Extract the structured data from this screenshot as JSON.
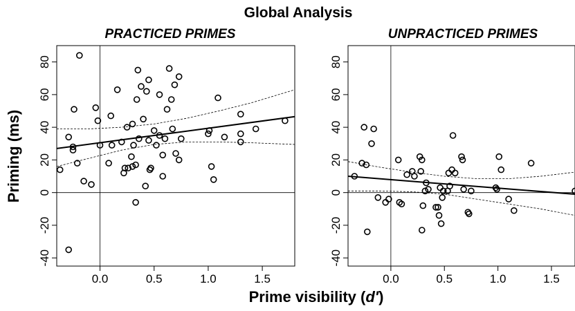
{
  "title": "Global Analysis",
  "xlabel_prefix": "Prime visibility (",
  "xlabel_var": "d′",
  "xlabel_suffix": ")",
  "ylabel": "Priming (ms)",
  "chart_data": [
    {
      "type": "scatter",
      "title": "PRACTICED PRIMES",
      "xlim": [
        -0.4,
        1.8
      ],
      "ylim": [
        -45,
        90
      ],
      "x_ticks": [
        0.0,
        0.5,
        1.0,
        1.5
      ],
      "x_tick_labels": [
        "0.0",
        "0.5",
        "1.0",
        "1.5"
      ],
      "y_ticks": [
        -40,
        -20,
        0,
        20,
        40,
        60,
        80
      ],
      "y_tick_labels": [
        "-40",
        "-20",
        "0",
        "20",
        "40",
        "60",
        "80"
      ],
      "reference_lines": {
        "x": 0,
        "y": 0
      },
      "regression": {
        "x": [
          -0.4,
          1.8
        ],
        "y": [
          27,
          46.5
        ]
      },
      "confidence_band": {
        "upper": {
          "x": [
            -0.4,
            -0.1,
            0.2,
            0.5,
            0.8,
            1.1,
            1.4,
            1.8
          ],
          "y": [
            39,
            39,
            40,
            42,
            45.5,
            50,
            55,
            63
          ]
        },
        "lower": {
          "x": [
            -0.4,
            -0.1,
            0.2,
            0.5,
            0.8,
            1.1,
            1.4,
            1.8
          ],
          "y": [
            16,
            21,
            26,
            29.5,
            31,
            31,
            30.5,
            29.5
          ]
        }
      },
      "points": [
        {
          "x": -0.37,
          "y": 14
        },
        {
          "x": -0.29,
          "y": 34
        },
        {
          "x": -0.29,
          "y": -35
        },
        {
          "x": -0.25,
          "y": 28
        },
        {
          "x": -0.25,
          "y": 26
        },
        {
          "x": -0.24,
          "y": 51
        },
        {
          "x": -0.21,
          "y": 18
        },
        {
          "x": -0.19,
          "y": 84
        },
        {
          "x": -0.15,
          "y": 7
        },
        {
          "x": -0.08,
          "y": 5
        },
        {
          "x": -0.04,
          "y": 52
        },
        {
          "x": -0.02,
          "y": 44
        },
        {
          "x": 0.0,
          "y": 29
        },
        {
          "x": 0.08,
          "y": 18
        },
        {
          "x": 0.1,
          "y": 47
        },
        {
          "x": 0.11,
          "y": 29
        },
        {
          "x": 0.16,
          "y": 63
        },
        {
          "x": 0.2,
          "y": 31
        },
        {
          "x": 0.22,
          "y": 12
        },
        {
          "x": 0.23,
          "y": 15
        },
        {
          "x": 0.25,
          "y": 40
        },
        {
          "x": 0.26,
          "y": 15
        },
        {
          "x": 0.29,
          "y": 22
        },
        {
          "x": 0.3,
          "y": 42
        },
        {
          "x": 0.3,
          "y": 16
        },
        {
          "x": 0.31,
          "y": 29
        },
        {
          "x": 0.33,
          "y": -6
        },
        {
          "x": 0.33,
          "y": 17
        },
        {
          "x": 0.34,
          "y": 57
        },
        {
          "x": 0.35,
          "y": 75
        },
        {
          "x": 0.36,
          "y": 33
        },
        {
          "x": 0.38,
          "y": 65
        },
        {
          "x": 0.4,
          "y": 45
        },
        {
          "x": 0.42,
          "y": 4
        },
        {
          "x": 0.43,
          "y": 62
        },
        {
          "x": 0.45,
          "y": 69
        },
        {
          "x": 0.45,
          "y": 32
        },
        {
          "x": 0.46,
          "y": 14
        },
        {
          "x": 0.47,
          "y": 15
        },
        {
          "x": 0.5,
          "y": 38
        },
        {
          "x": 0.52,
          "y": 29
        },
        {
          "x": 0.55,
          "y": 35
        },
        {
          "x": 0.55,
          "y": 60
        },
        {
          "x": 0.58,
          "y": 23
        },
        {
          "x": 0.58,
          "y": 10
        },
        {
          "x": 0.6,
          "y": 33
        },
        {
          "x": 0.62,
          "y": 51
        },
        {
          "x": 0.64,
          "y": 76
        },
        {
          "x": 0.66,
          "y": 57
        },
        {
          "x": 0.67,
          "y": 39
        },
        {
          "x": 0.69,
          "y": 66
        },
        {
          "x": 0.7,
          "y": 24
        },
        {
          "x": 0.73,
          "y": 20
        },
        {
          "x": 0.73,
          "y": 71
        },
        {
          "x": 0.75,
          "y": 33
        },
        {
          "x": 1.0,
          "y": 36
        },
        {
          "x": 1.01,
          "y": 38
        },
        {
          "x": 1.03,
          "y": 16
        },
        {
          "x": 1.05,
          "y": 8
        },
        {
          "x": 1.09,
          "y": 58
        },
        {
          "x": 1.15,
          "y": 34
        },
        {
          "x": 1.3,
          "y": 36
        },
        {
          "x": 1.3,
          "y": 31
        },
        {
          "x": 1.3,
          "y": 48
        },
        {
          "x": 1.44,
          "y": 39
        },
        {
          "x": 1.71,
          "y": 44
        }
      ]
    },
    {
      "type": "scatter",
      "title": "UNPRACTICED PRIMES",
      "xlim": [
        -0.4,
        1.72
      ],
      "ylim": [
        -45,
        90
      ],
      "x_ticks": [
        0.0,
        0.5,
        1.0,
        1.5
      ],
      "x_tick_labels": [
        "0.0",
        "0.5",
        "1.0",
        "1.5"
      ],
      "y_ticks": [
        -40,
        -20,
        0,
        20,
        40,
        60,
        80
      ],
      "y_tick_labels": [
        "-40",
        "-20",
        "0",
        "20",
        "40",
        "60",
        "80"
      ],
      "reference_lines": {
        "x": 0,
        "y": 0
      },
      "regression": {
        "x": [
          -0.4,
          1.72
        ],
        "y": [
          10,
          -1
        ]
      },
      "confidence_band": {
        "upper": {
          "x": [
            -0.4,
            -0.1,
            0.2,
            0.5,
            0.8,
            1.1,
            1.4,
            1.72
          ],
          "y": [
            19,
            15.5,
            12.5,
            10,
            8.5,
            8.5,
            10,
            12.5
          ]
        },
        "lower": {
          "x": [
            -0.4,
            -0.1,
            0.2,
            0.5,
            0.8,
            1.1,
            1.4,
            1.72
          ],
          "y": [
            1,
            1,
            0.5,
            -1,
            -4,
            -7,
            -10,
            -14
          ]
        }
      },
      "points": [
        {
          "x": -0.34,
          "y": 10
        },
        {
          "x": -0.27,
          "y": 18
        },
        {
          "x": -0.25,
          "y": 40
        },
        {
          "x": -0.23,
          "y": 17
        },
        {
          "x": -0.22,
          "y": -24
        },
        {
          "x": -0.18,
          "y": 30
        },
        {
          "x": -0.16,
          "y": 39
        },
        {
          "x": -0.12,
          "y": -3
        },
        {
          "x": -0.05,
          "y": -6
        },
        {
          "x": -0.02,
          "y": -4
        },
        {
          "x": 0.07,
          "y": 20
        },
        {
          "x": 0.08,
          "y": -6
        },
        {
          "x": 0.1,
          "y": -7
        },
        {
          "x": 0.15,
          "y": 11
        },
        {
          "x": 0.2,
          "y": 13
        },
        {
          "x": 0.22,
          "y": 10
        },
        {
          "x": 0.27,
          "y": 22
        },
        {
          "x": 0.28,
          "y": 13
        },
        {
          "x": 0.29,
          "y": 20
        },
        {
          "x": 0.29,
          "y": -23
        },
        {
          "x": 0.3,
          "y": -8
        },
        {
          "x": 0.32,
          "y": 1
        },
        {
          "x": 0.33,
          "y": 6
        },
        {
          "x": 0.35,
          "y": 2
        },
        {
          "x": 0.42,
          "y": -9
        },
        {
          "x": 0.44,
          "y": -9
        },
        {
          "x": 0.45,
          "y": -14
        },
        {
          "x": 0.46,
          "y": 3
        },
        {
          "x": 0.47,
          "y": -19
        },
        {
          "x": 0.48,
          "y": -3
        },
        {
          "x": 0.49,
          "y": 1
        },
        {
          "x": 0.53,
          "y": 1
        },
        {
          "x": 0.54,
          "y": 12
        },
        {
          "x": 0.55,
          "y": 4
        },
        {
          "x": 0.57,
          "y": 14
        },
        {
          "x": 0.58,
          "y": 35
        },
        {
          "x": 0.6,
          "y": 12
        },
        {
          "x": 0.66,
          "y": 22
        },
        {
          "x": 0.67,
          "y": 20
        },
        {
          "x": 0.68,
          "y": 2
        },
        {
          "x": 0.72,
          "y": -12
        },
        {
          "x": 0.73,
          "y": -13
        },
        {
          "x": 0.75,
          "y": 1
        },
        {
          "x": 0.98,
          "y": 3
        },
        {
          "x": 0.99,
          "y": 2
        },
        {
          "x": 1.01,
          "y": 22
        },
        {
          "x": 1.03,
          "y": 14
        },
        {
          "x": 1.1,
          "y": -4
        },
        {
          "x": 1.15,
          "y": -11
        },
        {
          "x": 1.31,
          "y": 18
        },
        {
          "x": 1.72,
          "y": 1
        }
      ]
    }
  ]
}
